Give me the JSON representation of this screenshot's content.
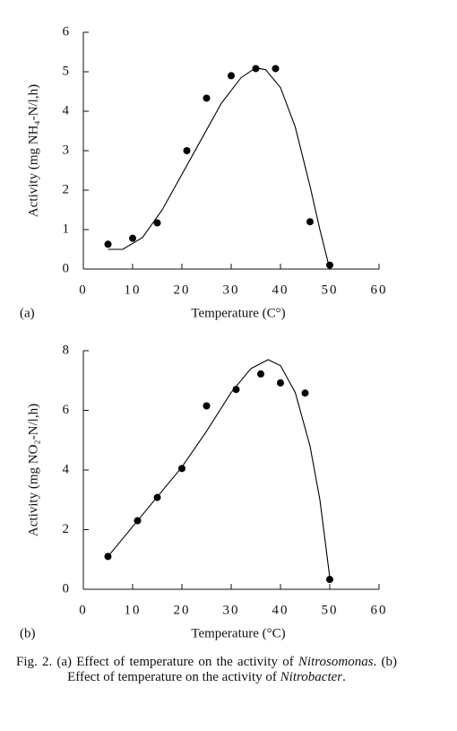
{
  "chart_data": [
    {
      "type": "scatter",
      "panel": "(a)",
      "xlabel": "Temperature (C°)",
      "ylabel": "Activity (mg NH₄-N/l,h)",
      "x": [
        5,
        10,
        15,
        21,
        25,
        30,
        35,
        39,
        46,
        50
      ],
      "values": [
        0.63,
        0.78,
        1.17,
        3.0,
        4.33,
        4.9,
        5.08,
        5.08,
        1.2,
        0.1
      ],
      "curve": {
        "x": [
          5,
          8,
          12,
          16,
          20,
          24,
          28,
          32,
          35,
          37,
          40,
          43,
          46,
          48,
          50
        ],
        "values": [
          0.5,
          0.5,
          0.8,
          1.5,
          2.4,
          3.3,
          4.2,
          4.85,
          5.1,
          5.05,
          4.6,
          3.6,
          2.1,
          1.0,
          0
        ]
      },
      "color": "#000000",
      "xlim": [
        0,
        60
      ],
      "xticks": [
        0,
        10,
        20,
        30,
        40,
        50,
        60
      ],
      "ylim": [
        0,
        6
      ],
      "yticks": [
        0,
        1,
        2,
        3,
        4,
        5,
        6
      ],
      "grid": false
    },
    {
      "type": "scatter",
      "panel": "(b)",
      "xlabel": "Temperature (°C)",
      "ylabel": "Activity (mg NO₂-N/l,h)",
      "x": [
        5,
        11,
        15,
        20,
        25,
        31,
        36,
        40,
        45,
        50
      ],
      "values": [
        1.1,
        2.3,
        3.08,
        4.05,
        6.15,
        6.7,
        7.22,
        6.92,
        6.58,
        0.33
      ],
      "curve": {
        "x": [
          5,
          10,
          15,
          20,
          25,
          30,
          34,
          37.5,
          40,
          43,
          46,
          48,
          50
        ],
        "values": [
          1.1,
          2.1,
          3.1,
          4.1,
          5.3,
          6.6,
          7.4,
          7.7,
          7.5,
          6.6,
          4.8,
          3.0,
          0.4
        ]
      },
      "color": "#000000",
      "xlim": [
        0,
        60
      ],
      "xticks": [
        0,
        10,
        20,
        30,
        40,
        50,
        60
      ],
      "ylim": [
        0,
        8
      ],
      "yticks": [
        0,
        2,
        4,
        6,
        8
      ],
      "grid": false
    }
  ],
  "caption": [
    "Fig. 2. (a) Effect of temperature on the activity of ",
    "Nitrosomonas",
    ". (b) Effect of temperature on the activity of ",
    "Nitrobacter",
    "."
  ]
}
